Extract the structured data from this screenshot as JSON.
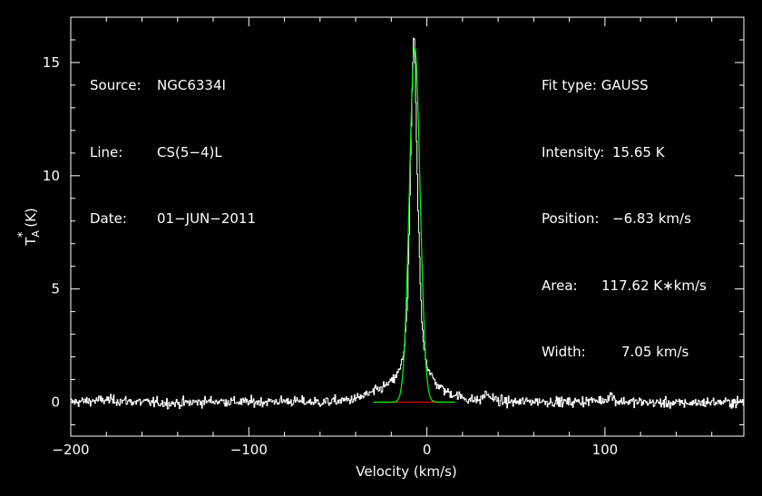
{
  "header_left": [
    {
      "label": "Source:",
      "value": "NGC6334I"
    },
    {
      "label": "Line:",
      "value": "CS(5−4)L"
    },
    {
      "label": "Date:",
      "value": "01−JUN−2011"
    }
  ],
  "header_right": {
    "fit_type_label": "Fit type:",
    "fit_type": "GAUSS",
    "intensity_label": "Intensity:",
    "intensity": "15.65 K",
    "position_label": "Position:",
    "position": "−6.83 km/s",
    "area_label": "Area:",
    "area": "117.62 K∗km/s",
    "width_label": "Width:",
    "width": "7.05 km/s"
  },
  "chart_data": {
    "type": "line",
    "xlabel": "Velocity (km/s)",
    "ylabel": "T*A (K)",
    "xlim": [
      -200,
      178
    ],
    "ylim": [
      -1.5,
      17
    ],
    "x_ticks": [
      -200,
      -100,
      0,
      100
    ],
    "x_tick_labels": [
      "−200",
      "−100",
      "0",
      "100"
    ],
    "y_ticks": [
      0,
      5,
      10,
      15
    ],
    "y_tick_labels": [
      "0",
      "5",
      "10",
      "15"
    ],
    "grid": false,
    "colors": {
      "spectrum": "#ffffff",
      "fit": "#00ff00",
      "baseline": "#ff0000",
      "frame": "#ffffff",
      "background": "#000000"
    },
    "series": [
      {
        "name": "spectrum",
        "x": [
          -200,
          -180,
          -160,
          -140,
          -120,
          -100,
          -80,
          -60,
          -50,
          -40,
          -35,
          -30,
          -25,
          -20,
          -17,
          -15,
          -13,
          -11,
          -10,
          -9,
          -8,
          -7.5,
          -7,
          -6.5,
          -6,
          -5,
          -4,
          -3,
          -2,
          -1,
          0,
          2,
          4,
          6,
          10,
          15,
          20,
          25,
          30,
          33,
          36,
          40,
          50,
          60,
          80,
          100,
          103,
          106,
          120,
          140,
          160,
          178
        ],
        "y": [
          0,
          0.1,
          0,
          -0.05,
          0.05,
          0,
          0.05,
          0,
          0.05,
          0.15,
          0.3,
          0.45,
          0.65,
          0.9,
          1.2,
          1.5,
          2.3,
          4.5,
          8.0,
          12.0,
          15.2,
          16.3,
          15.6,
          13.8,
          11.5,
          8.2,
          5.5,
          3.6,
          2.6,
          2.1,
          1.6,
          1.2,
          0.95,
          0.75,
          0.5,
          0.35,
          0.2,
          0.1,
          0.1,
          0.4,
          0.2,
          0.05,
          0,
          0.05,
          0,
          0.1,
          0.35,
          0.05,
          0,
          -0.05,
          0,
          0
        ]
      },
      {
        "name": "fit",
        "gaussian": {
          "amplitude": 15.65,
          "center": -6.83,
          "fwhm": 7.05
        }
      },
      {
        "name": "baseline",
        "x": [
          -30,
          16
        ],
        "y": [
          0,
          0
        ]
      }
    ]
  }
}
